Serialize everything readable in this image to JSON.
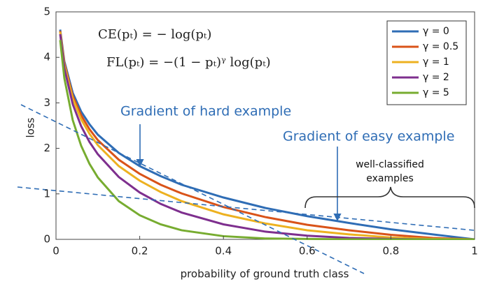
{
  "chart_data": {
    "type": "line",
    "x_label": "probability of ground truth class",
    "y_label": "loss",
    "formulas": [
      "CE(pₜ) = − log(pₜ)",
      "FL(pₜ) = −(1 − pₜ)ᵞ log(pₜ)"
    ],
    "annotations": {
      "hard": "Gradient of hard example",
      "easy": "Gradient of easy example",
      "region": [
        "well-classified",
        "examples"
      ]
    },
    "x": [
      0.01,
      0.02,
      0.04,
      0.06,
      0.08,
      0.1,
      0.15,
      0.2,
      0.25,
      0.3,
      0.4,
      0.5,
      0.6,
      0.7,
      0.8,
      0.9,
      1.0
    ],
    "series": [
      {
        "name": "γ = 0",
        "color": "#2f6db5",
        "values": [
          4.61,
          3.91,
          3.22,
          2.81,
          2.53,
          2.3,
          1.9,
          1.61,
          1.39,
          1.2,
          0.92,
          0.69,
          0.51,
          0.36,
          0.22,
          0.11,
          0
        ]
      },
      {
        "name": "γ = 0.5",
        "color": "#d95319",
        "values": [
          4.58,
          3.87,
          3.15,
          2.73,
          2.42,
          2.18,
          1.75,
          1.44,
          1.2,
          1.01,
          0.71,
          0.49,
          0.32,
          0.2,
          0.1,
          0.03,
          0
        ]
      },
      {
        "name": "γ = 1",
        "color": "#edb120",
        "values": [
          4.56,
          3.83,
          3.09,
          2.64,
          2.32,
          2.07,
          1.61,
          1.29,
          1.04,
          0.84,
          0.55,
          0.35,
          0.2,
          0.11,
          0.04,
          0.01,
          0
        ]
      },
      {
        "name": "γ = 2",
        "color": "#7e2f8e",
        "values": [
          4.51,
          3.76,
          2.97,
          2.49,
          2.14,
          1.87,
          1.37,
          1.03,
          0.78,
          0.59,
          0.33,
          0.17,
          0.08,
          0.03,
          0.01,
          0.0,
          0
        ]
      },
      {
        "name": "γ = 5",
        "color": "#77ac30",
        "values": [
          4.38,
          3.54,
          2.62,
          2.06,
          1.66,
          1.36,
          0.84,
          0.53,
          0.33,
          0.2,
          0.07,
          0.02,
          0.01,
          0.0,
          0,
          0,
          0
        ]
      }
    ],
    "xlim": [
      0,
      1
    ],
    "ylim": [
      0,
      5
    ],
    "xticks": [
      0,
      0.2,
      0.4,
      0.6,
      0.8,
      1
    ],
    "yticks": [
      0,
      1,
      2,
      3,
      4,
      5
    ],
    "legend": "upper right"
  }
}
